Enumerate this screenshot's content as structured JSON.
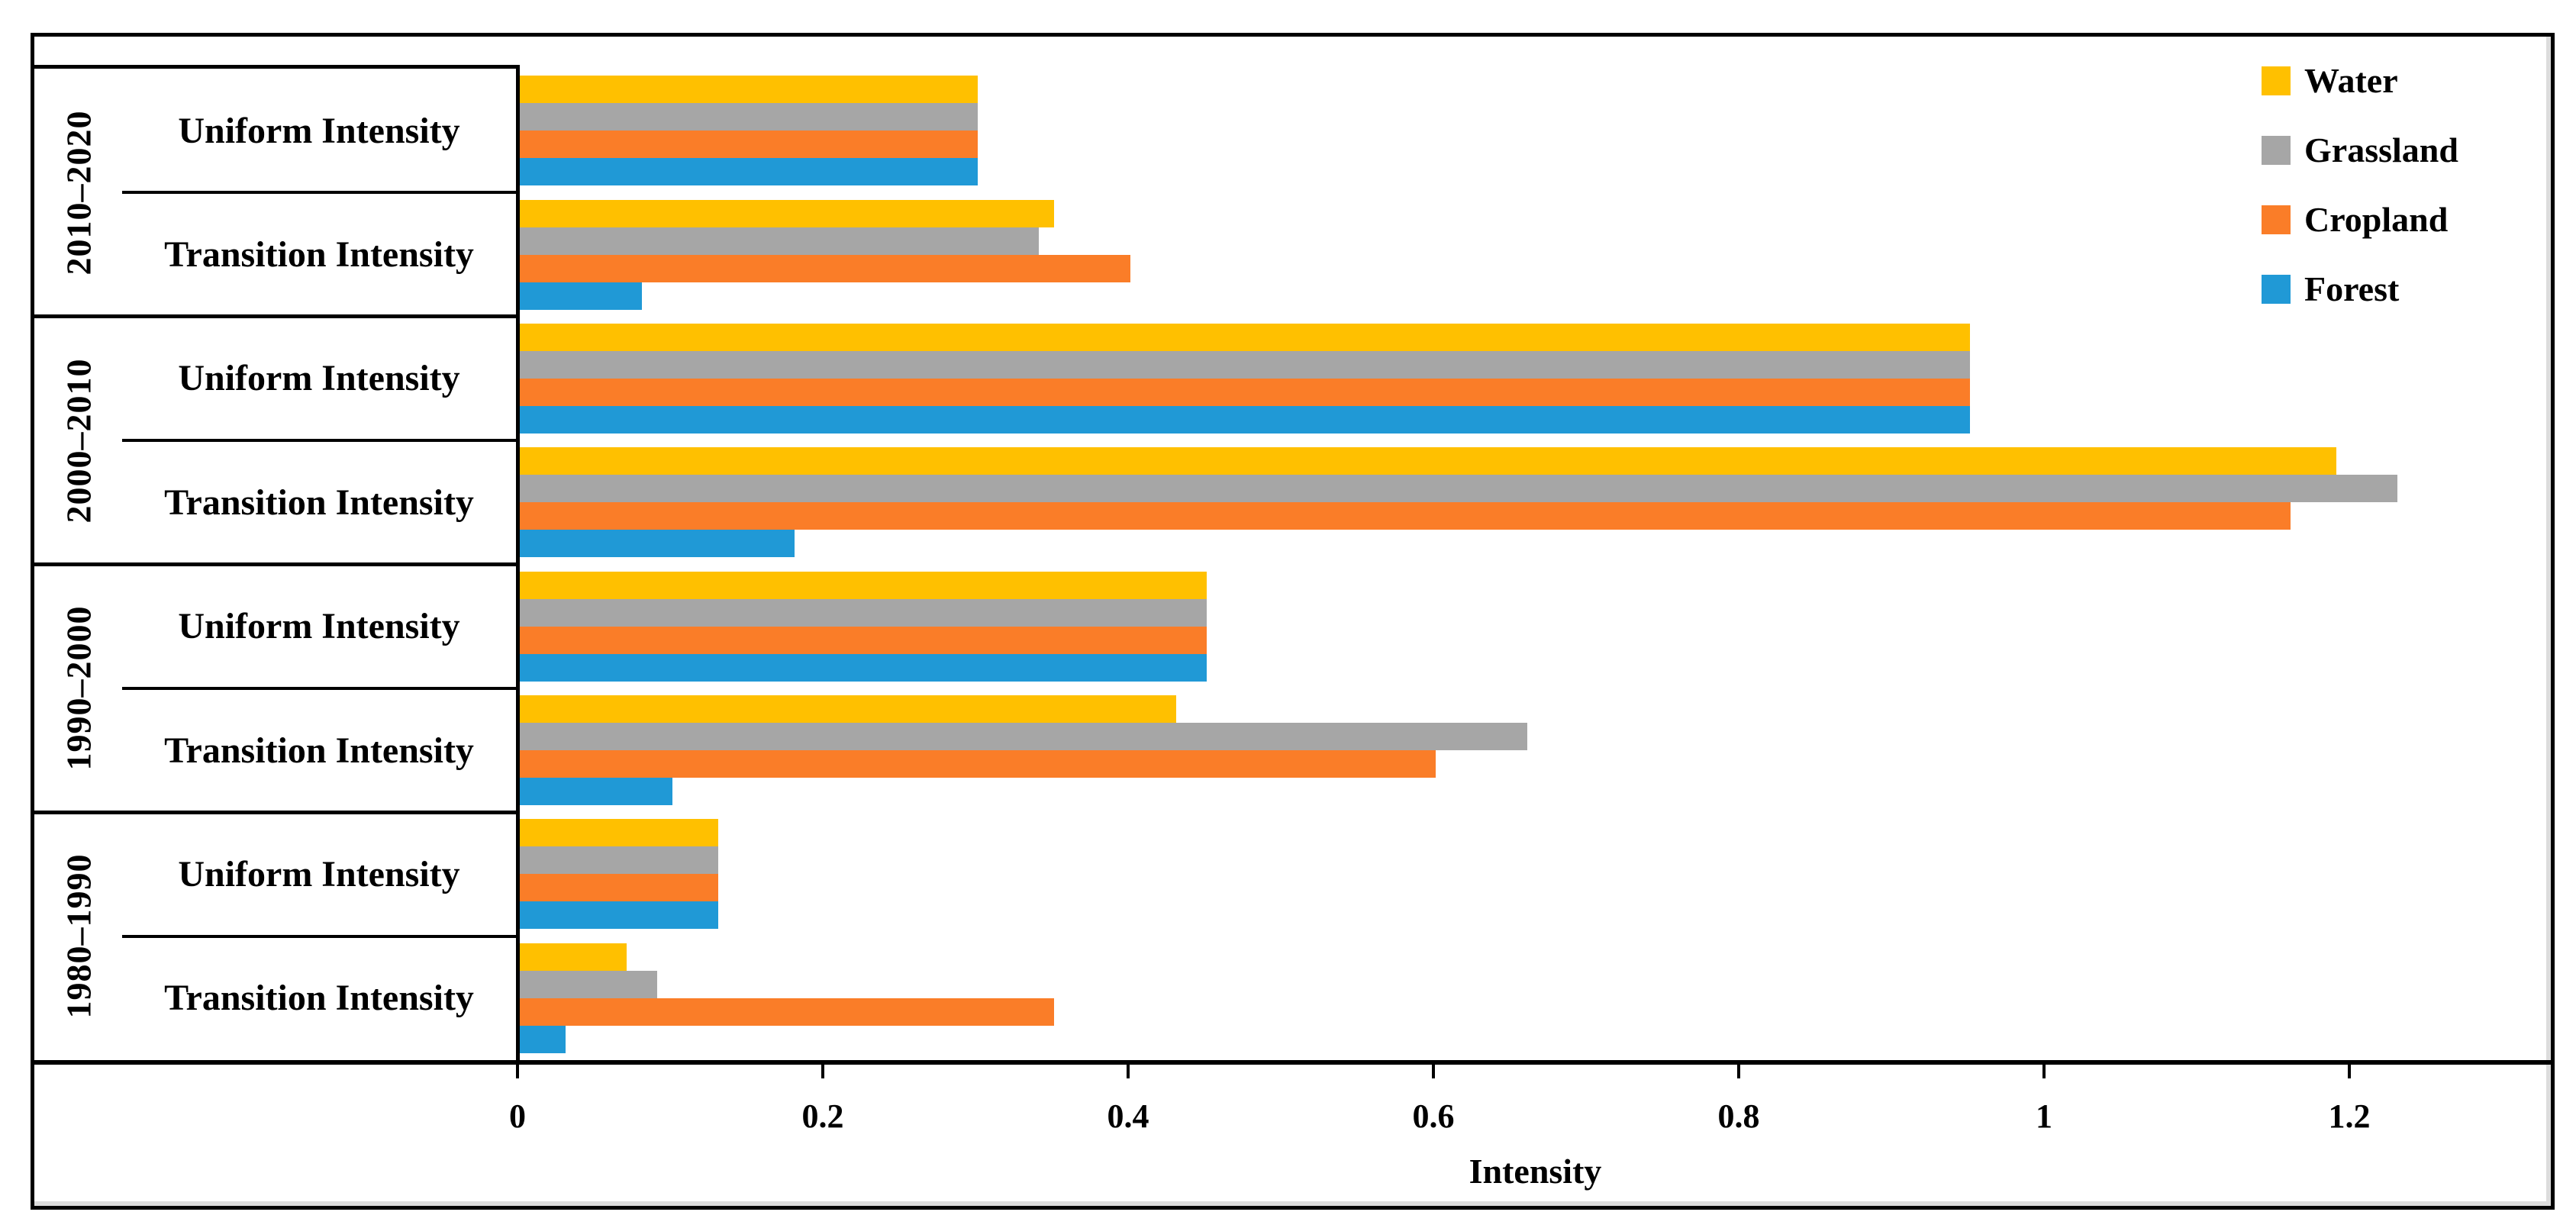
{
  "chart_data": {
    "type": "bar",
    "orientation": "horizontal",
    "title": "",
    "xlabel": "Intensity",
    "ylabel": "",
    "xlim": [
      0,
      1.33
    ],
    "grid": false,
    "legend_position": "top-right",
    "x_ticks": [
      0,
      0.2,
      0.4,
      0.6,
      0.8,
      1,
      1.2
    ],
    "x_tick_labels": [
      "0",
      "0.2",
      "0.4",
      "0.6",
      "0.8",
      "1",
      "1.2"
    ],
    "series": [
      {
        "name": "Water",
        "color": "#FFC000"
      },
      {
        "name": "Grassland",
        "color": "#A6A6A6"
      },
      {
        "name": "Cropland",
        "color": "#FA7D28"
      },
      {
        "name": "Forest",
        "color": "#2099D6"
      }
    ],
    "groups": [
      {
        "period": "2010–2020",
        "rows": [
          {
            "label": "Uniform Intensity",
            "values": [
              0.3,
              0.3,
              0.3,
              0.3
            ]
          },
          {
            "label": "Transition Intensity",
            "values": [
              0.35,
              0.34,
              0.4,
              0.08
            ]
          }
        ]
      },
      {
        "period": "2000–2010",
        "rows": [
          {
            "label": "Uniform Intensity",
            "values": [
              0.95,
              0.95,
              0.95,
              0.95
            ]
          },
          {
            "label": "Transition Intensity",
            "values": [
              1.19,
              1.23,
              1.16,
              0.18
            ]
          }
        ]
      },
      {
        "period": "1990–2000",
        "rows": [
          {
            "label": "Uniform Intensity",
            "values": [
              0.45,
              0.45,
              0.45,
              0.45
            ]
          },
          {
            "label": "Transition Intensity",
            "values": [
              0.43,
              0.66,
              0.6,
              0.1
            ]
          }
        ]
      },
      {
        "period": "1980–1990",
        "rows": [
          {
            "label": "Uniform Intensity",
            "values": [
              0.13,
              0.13,
              0.13,
              0.13
            ]
          },
          {
            "label": "Transition Intensity",
            "values": [
              0.07,
              0.09,
              0.35,
              0.03
            ]
          }
        ]
      }
    ]
  }
}
